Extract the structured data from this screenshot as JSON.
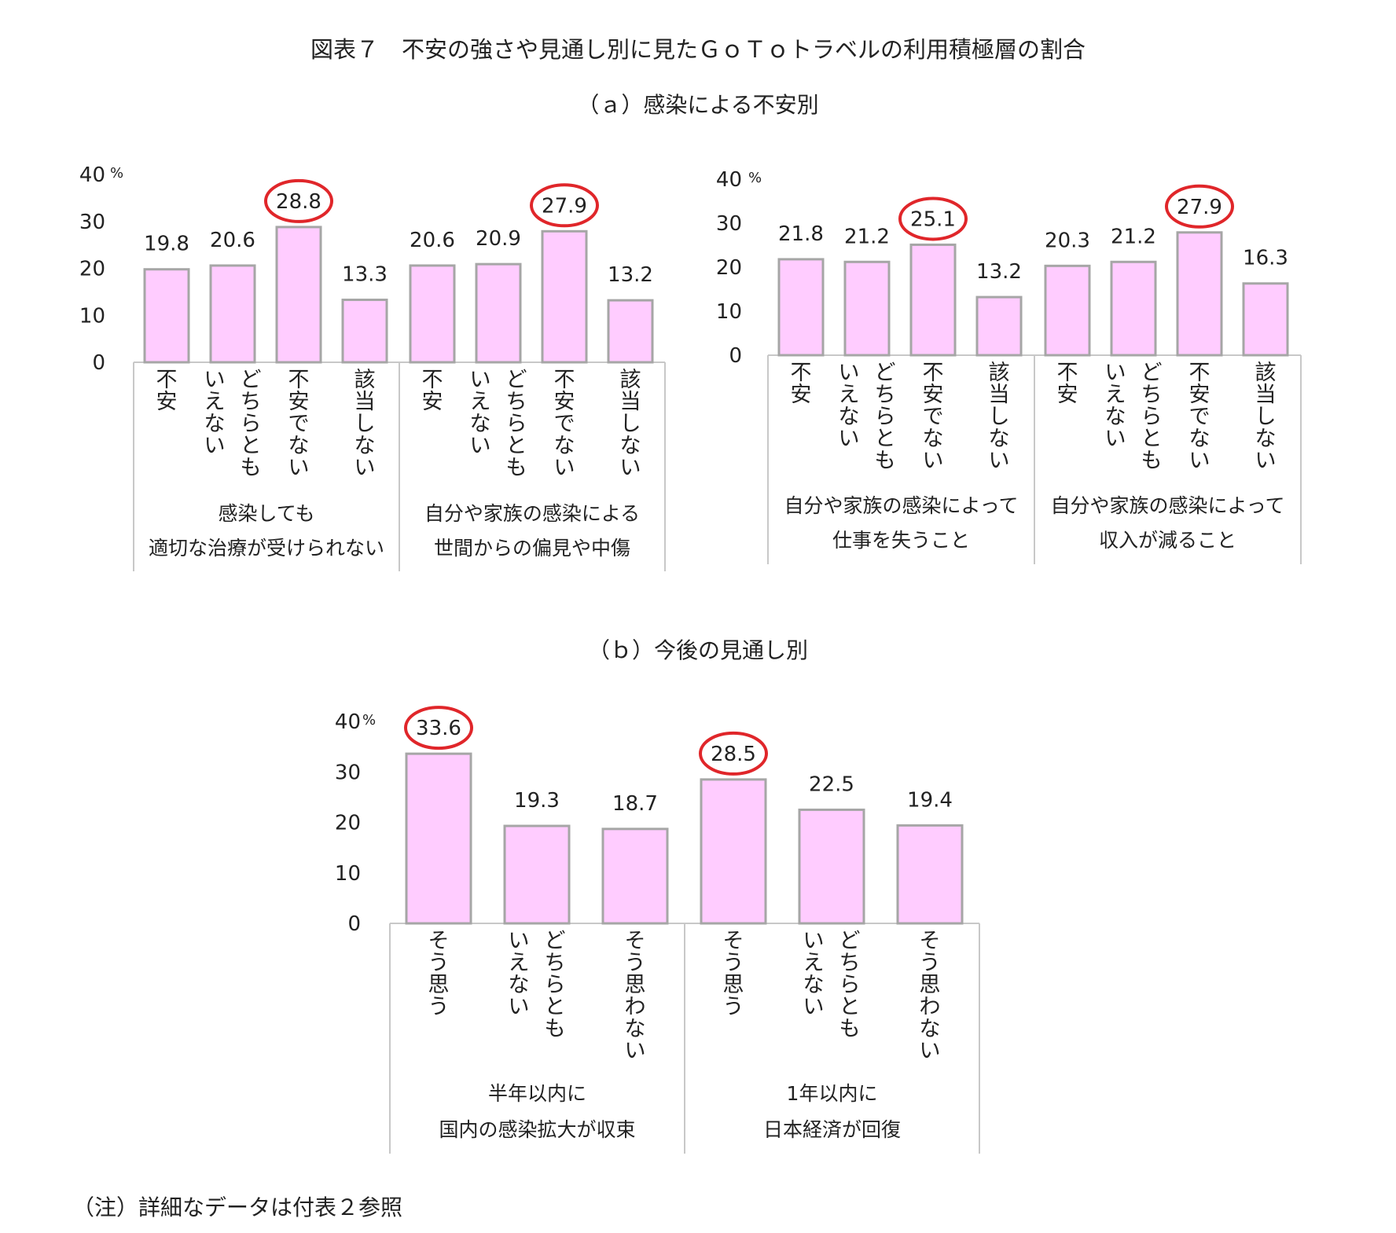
{
  "figure_title": "図表７　不安の強さや見通し別に見たＧｏＴｏトラベルの利用積極層の割合",
  "section_a_title": "（ａ）感染による不安別",
  "section_b_title": "（ｂ）今後の見通し別",
  "note": "（注）詳細なデータは付表２参照",
  "colors": {
    "bar_fill": "#ffccff",
    "bar_stroke": "#a6a6a6",
    "highlight_circle": "#e0262a",
    "grid_line": "#c8c8c8"
  },
  "chart_data": [
    {
      "type": "bar",
      "yunit": "%",
      "yticks": [
        "40",
        "30",
        "20",
        "10",
        "0"
      ],
      "ylim": [
        0,
        40
      ],
      "groups": [
        {
          "label_lines": [
            "感染しても",
            "適切な治療が受けられない"
          ],
          "categories": [
            [
              "不安"
            ],
            [
              "いえない",
              "どちらとも"
            ],
            [
              "不安でない"
            ],
            [
              "該当しない"
            ]
          ],
          "values": [
            19.8,
            20.6,
            28.8,
            13.3
          ],
          "value_labels": [
            "19.8",
            "20.6",
            "28.8",
            "13.3"
          ],
          "highlight": 2
        },
        {
          "label_lines": [
            "自分や家族の感染による",
            "世間からの偏見や中傷"
          ],
          "categories": [
            [
              "不安"
            ],
            [
              "いえない",
              "どちらとも"
            ],
            [
              "不安でない"
            ],
            [
              "該当しない"
            ]
          ],
          "values": [
            20.6,
            20.9,
            27.9,
            13.2
          ],
          "value_labels": [
            "20.6",
            "20.9",
            "27.9",
            "13.2"
          ],
          "highlight": 2
        }
      ]
    },
    {
      "type": "bar",
      "yunit": "%",
      "yticks": [
        "40",
        "30",
        "20",
        "10",
        "0"
      ],
      "ylim": [
        0,
        40
      ],
      "groups": [
        {
          "label_lines": [
            "自分や家族の感染によって",
            "仕事を失うこと"
          ],
          "categories": [
            [
              "不安"
            ],
            [
              "いえない",
              "どちらとも"
            ],
            [
              "不安でない"
            ],
            [
              "該当しない"
            ]
          ],
          "values": [
            21.8,
            21.2,
            25.1,
            13.2
          ],
          "value_labels": [
            "21.8",
            "21.2",
            "25.1",
            "13.2"
          ],
          "highlight": 2
        },
        {
          "label_lines": [
            "自分や家族の感染によって",
            "収入が減ること"
          ],
          "categories": [
            [
              "不安"
            ],
            [
              "いえない",
              "どちらとも"
            ],
            [
              "不安でない"
            ],
            [
              "該当しない"
            ]
          ],
          "values": [
            20.3,
            21.2,
            27.9,
            16.3
          ],
          "value_labels": [
            "20.3",
            "21.2",
            "27.9",
            "16.3"
          ],
          "highlight": 2
        }
      ]
    },
    {
      "type": "bar",
      "yunit": "%",
      "yticks": [
        "40",
        "30",
        "20",
        "10",
        "0"
      ],
      "ylim": [
        0,
        40
      ],
      "groups": [
        {
          "label_lines": [
            "半年以内に",
            "国内の感染拡大が収束"
          ],
          "categories": [
            [
              "そう思う"
            ],
            [
              "いえない",
              "どちらとも"
            ],
            [
              "そう思わない"
            ]
          ],
          "values": [
            33.6,
            19.3,
            18.7
          ],
          "value_labels": [
            "33.6",
            "19.3",
            "18.7"
          ],
          "highlight": 0
        },
        {
          "label_lines": [
            "1年以内に",
            "日本経済が回復"
          ],
          "categories": [
            [
              "そう思う"
            ],
            [
              "いえない",
              "どちらとも"
            ],
            [
              "そう思わない"
            ]
          ],
          "values": [
            28.5,
            22.5,
            19.4
          ],
          "value_labels": [
            "28.5",
            "22.5",
            "19.4"
          ],
          "highlight": 0
        }
      ]
    }
  ]
}
